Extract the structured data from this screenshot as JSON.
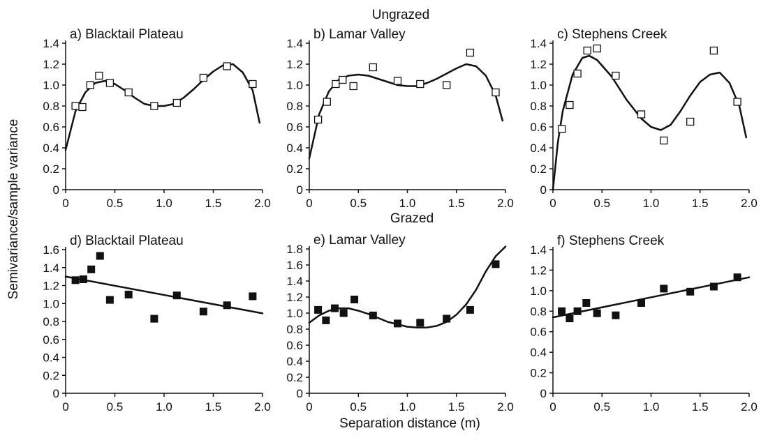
{
  "figure": {
    "ylabel": "Semivariance/sample variance",
    "xlabel": "Separation distance (m)",
    "groups": [
      "Ungrazed",
      "Grazed"
    ]
  },
  "chart_data": [
    {
      "type": "scatter",
      "title": "a) Blacktail Plateau",
      "group": "Ungrazed",
      "marker": "open-square",
      "xlim": [
        0,
        2.0
      ],
      "ylim": [
        0,
        1.4
      ],
      "xticks": [
        "0",
        "0.5",
        "1.0",
        "1.5",
        "2.0"
      ],
      "yticks": [
        "0",
        "0.2",
        "0.4",
        "0.6",
        "0.8",
        "1.0",
        "1.2",
        "1.4"
      ],
      "points": [
        [
          0.1,
          0.8
        ],
        [
          0.17,
          0.79
        ],
        [
          0.25,
          1.0
        ],
        [
          0.34,
          1.09
        ],
        [
          0.45,
          1.02
        ],
        [
          0.64,
          0.93
        ],
        [
          0.9,
          0.8
        ],
        [
          1.13,
          0.83
        ],
        [
          1.4,
          1.07
        ],
        [
          1.64,
          1.18
        ],
        [
          1.9,
          1.01
        ]
      ],
      "fit": [
        [
          0,
          0.38
        ],
        [
          0.1,
          0.75
        ],
        [
          0.2,
          0.93
        ],
        [
          0.3,
          1.02
        ],
        [
          0.4,
          1.04
        ],
        [
          0.5,
          1.01
        ],
        [
          0.6,
          0.95
        ],
        [
          0.7,
          0.88
        ],
        [
          0.8,
          0.82
        ],
        [
          0.9,
          0.8
        ],
        [
          1.0,
          0.8
        ],
        [
          1.1,
          0.82
        ],
        [
          1.2,
          0.88
        ],
        [
          1.3,
          0.96
        ],
        [
          1.4,
          1.05
        ],
        [
          1.5,
          1.13
        ],
        [
          1.6,
          1.19
        ],
        [
          1.7,
          1.2
        ],
        [
          1.8,
          1.12
        ],
        [
          1.9,
          0.95
        ],
        [
          1.97,
          0.64
        ]
      ]
    },
    {
      "type": "scatter",
      "title": "b) Lamar Valley",
      "group": "Ungrazed",
      "marker": "open-square",
      "xlim": [
        0,
        2.0
      ],
      "ylim": [
        0,
        1.4
      ],
      "xticks": [
        "0",
        "0.5",
        "1.0",
        "1.5",
        "2.0"
      ],
      "yticks": [
        "0",
        "0.2",
        "0.4",
        "0.6",
        "0.8",
        "1.0",
        "1.2",
        "1.4"
      ],
      "points": [
        [
          0.09,
          0.67
        ],
        [
          0.18,
          0.84
        ],
        [
          0.27,
          1.01
        ],
        [
          0.34,
          1.05
        ],
        [
          0.45,
          0.99
        ],
        [
          0.65,
          1.17
        ],
        [
          0.9,
          1.04
        ],
        [
          1.13,
          1.01
        ],
        [
          1.4,
          1.0
        ],
        [
          1.64,
          1.31
        ],
        [
          1.9,
          0.93
        ]
      ],
      "fit": [
        [
          0,
          0.3
        ],
        [
          0.1,
          0.72
        ],
        [
          0.2,
          0.94
        ],
        [
          0.3,
          1.05
        ],
        [
          0.4,
          1.09
        ],
        [
          0.5,
          1.1
        ],
        [
          0.6,
          1.09
        ],
        [
          0.7,
          1.06
        ],
        [
          0.8,
          1.03
        ],
        [
          0.9,
          1.0
        ],
        [
          1.0,
          0.99
        ],
        [
          1.1,
          0.99
        ],
        [
          1.2,
          1.02
        ],
        [
          1.3,
          1.06
        ],
        [
          1.4,
          1.11
        ],
        [
          1.5,
          1.16
        ],
        [
          1.6,
          1.2
        ],
        [
          1.7,
          1.18
        ],
        [
          1.8,
          1.09
        ],
        [
          1.9,
          0.9
        ],
        [
          1.97,
          0.66
        ]
      ]
    },
    {
      "type": "scatter",
      "title": "c) Stephens Creek",
      "group": "Ungrazed",
      "marker": "open-square",
      "xlim": [
        0,
        2.0
      ],
      "ylim": [
        0,
        1.4
      ],
      "xticks": [
        "0",
        "0.5",
        "1.0",
        "1.5",
        "2.0"
      ],
      "yticks": [
        "0",
        "0.2",
        "0.4",
        "0.6",
        "0.8",
        "1.0",
        "1.2",
        "1.4"
      ],
      "points": [
        [
          0.09,
          0.58
        ],
        [
          0.17,
          0.81
        ],
        [
          0.25,
          1.11
        ],
        [
          0.35,
          1.33
        ],
        [
          0.45,
          1.35
        ],
        [
          0.64,
          1.09
        ],
        [
          0.9,
          0.72
        ],
        [
          1.13,
          0.47
        ],
        [
          1.4,
          0.65
        ],
        [
          1.64,
          1.33
        ],
        [
          1.88,
          0.84
        ]
      ],
      "fit": [
        [
          0,
          0.0
        ],
        [
          0.05,
          0.45
        ],
        [
          0.1,
          0.75
        ],
        [
          0.2,
          1.1
        ],
        [
          0.3,
          1.26
        ],
        [
          0.37,
          1.28
        ],
        [
          0.45,
          1.24
        ],
        [
          0.6,
          1.08
        ],
        [
          0.75,
          0.86
        ],
        [
          0.9,
          0.68
        ],
        [
          1.0,
          0.6
        ],
        [
          1.1,
          0.57
        ],
        [
          1.2,
          0.62
        ],
        [
          1.3,
          0.75
        ],
        [
          1.4,
          0.9
        ],
        [
          1.5,
          1.03
        ],
        [
          1.6,
          1.1
        ],
        [
          1.7,
          1.12
        ],
        [
          1.8,
          1.02
        ],
        [
          1.9,
          0.8
        ],
        [
          1.97,
          0.5
        ]
      ]
    },
    {
      "type": "scatter",
      "title": "d) Blacktail Plateau",
      "group": "Grazed",
      "marker": "filled-square",
      "xlim": [
        0,
        2.0
      ],
      "ylim": [
        0,
        1.6
      ],
      "xticks": [
        "0",
        "0.5",
        "1.0",
        "1.5",
        "2.0"
      ],
      "yticks": [
        "0",
        "0.2",
        "0.4",
        "0.6",
        "0.8",
        "1.0",
        "1.2",
        "1.4",
        "1.6"
      ],
      "points": [
        [
          0.1,
          1.26
        ],
        [
          0.18,
          1.27
        ],
        [
          0.26,
          1.38
        ],
        [
          0.35,
          1.53
        ],
        [
          0.45,
          1.04
        ],
        [
          0.64,
          1.1
        ],
        [
          0.9,
          0.83
        ],
        [
          1.13,
          1.09
        ],
        [
          1.4,
          0.91
        ],
        [
          1.64,
          0.98
        ],
        [
          1.9,
          1.08
        ]
      ],
      "fit": [
        [
          0,
          1.3
        ],
        [
          2.0,
          0.89
        ]
      ]
    },
    {
      "type": "scatter",
      "title": "e) Lamar Valley",
      "group": "Grazed",
      "marker": "filled-square",
      "xlim": [
        0,
        2.0
      ],
      "ylim": [
        0,
        1.8
      ],
      "xticks": [
        "0",
        "0.5",
        "1.0",
        "1.5",
        "2.0"
      ],
      "yticks": [
        "0",
        "0.2",
        "0.4",
        "0.6",
        "0.8",
        "1.0",
        "1.2",
        "1.4",
        "1.6",
        "1.8"
      ],
      "points": [
        [
          0.09,
          1.04
        ],
        [
          0.17,
          0.91
        ],
        [
          0.26,
          1.06
        ],
        [
          0.35,
          1.0
        ],
        [
          0.46,
          1.17
        ],
        [
          0.65,
          0.97
        ],
        [
          0.9,
          0.87
        ],
        [
          1.13,
          0.88
        ],
        [
          1.4,
          0.93
        ],
        [
          1.64,
          1.04
        ],
        [
          1.9,
          1.61
        ]
      ],
      "fit": [
        [
          0,
          0.88
        ],
        [
          0.1,
          0.97
        ],
        [
          0.2,
          1.03
        ],
        [
          0.3,
          1.06
        ],
        [
          0.4,
          1.06
        ],
        [
          0.5,
          1.03
        ],
        [
          0.6,
          0.99
        ],
        [
          0.7,
          0.94
        ],
        [
          0.8,
          0.89
        ],
        [
          0.9,
          0.86
        ],
        [
          1.0,
          0.83
        ],
        [
          1.1,
          0.82
        ],
        [
          1.2,
          0.82
        ],
        [
          1.3,
          0.84
        ],
        [
          1.4,
          0.89
        ],
        [
          1.5,
          0.98
        ],
        [
          1.6,
          1.11
        ],
        [
          1.7,
          1.29
        ],
        [
          1.8,
          1.52
        ],
        [
          1.9,
          1.71
        ],
        [
          2.0,
          1.83
        ]
      ]
    },
    {
      "type": "scatter",
      "title": "f) Stephens Creek",
      "group": "Grazed",
      "marker": "filled-square",
      "xlim": [
        0,
        2.0
      ],
      "ylim": [
        0,
        1.4
      ],
      "xticks": [
        "0",
        "0.5",
        "1.0",
        "1.5",
        "2.0"
      ],
      "yticks": [
        "0",
        "0.2",
        "0.4",
        "0.6",
        "0.8",
        "1.0",
        "1.2",
        "1.4"
      ],
      "points": [
        [
          0.09,
          0.8
        ],
        [
          0.17,
          0.73
        ],
        [
          0.25,
          0.8
        ],
        [
          0.34,
          0.88
        ],
        [
          0.45,
          0.78
        ],
        [
          0.64,
          0.76
        ],
        [
          0.9,
          0.88
        ],
        [
          1.13,
          1.02
        ],
        [
          1.4,
          0.99
        ],
        [
          1.64,
          1.04
        ],
        [
          1.88,
          1.13
        ]
      ],
      "fit": [
        [
          0,
          0.74
        ],
        [
          2.0,
          1.13
        ]
      ]
    }
  ]
}
